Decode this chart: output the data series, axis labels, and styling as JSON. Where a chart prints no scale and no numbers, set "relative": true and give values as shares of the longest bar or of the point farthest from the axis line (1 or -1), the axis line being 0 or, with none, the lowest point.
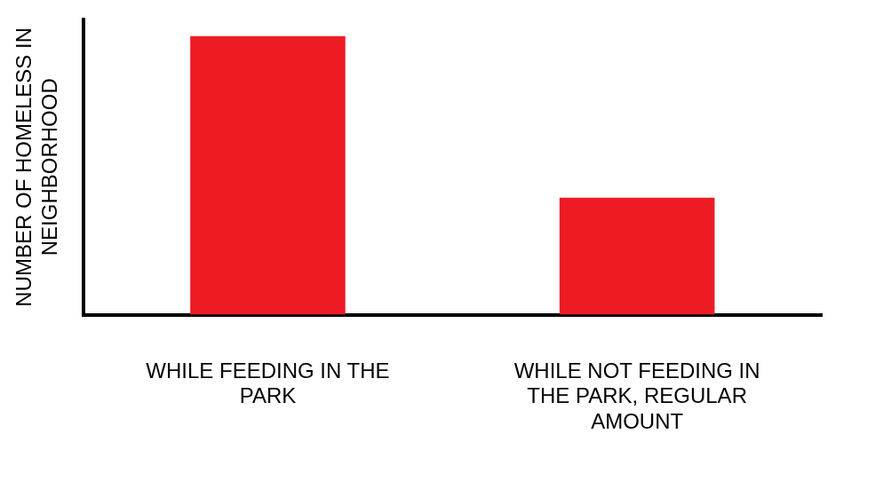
{
  "chart_data": {
    "type": "bar",
    "relative": true,
    "ylabel": "NUMBER OF HOMELESS IN NEIGHBORHOOD",
    "categories": [
      "WHILE FEEDING IN THE PARK",
      "WHILE NOT FEEDING IN THE PARK, REGULAR AMOUNT"
    ],
    "values": [
      1,
      0.42
    ],
    "color": "#ed1c24",
    "grid": false,
    "legend": false
  }
}
